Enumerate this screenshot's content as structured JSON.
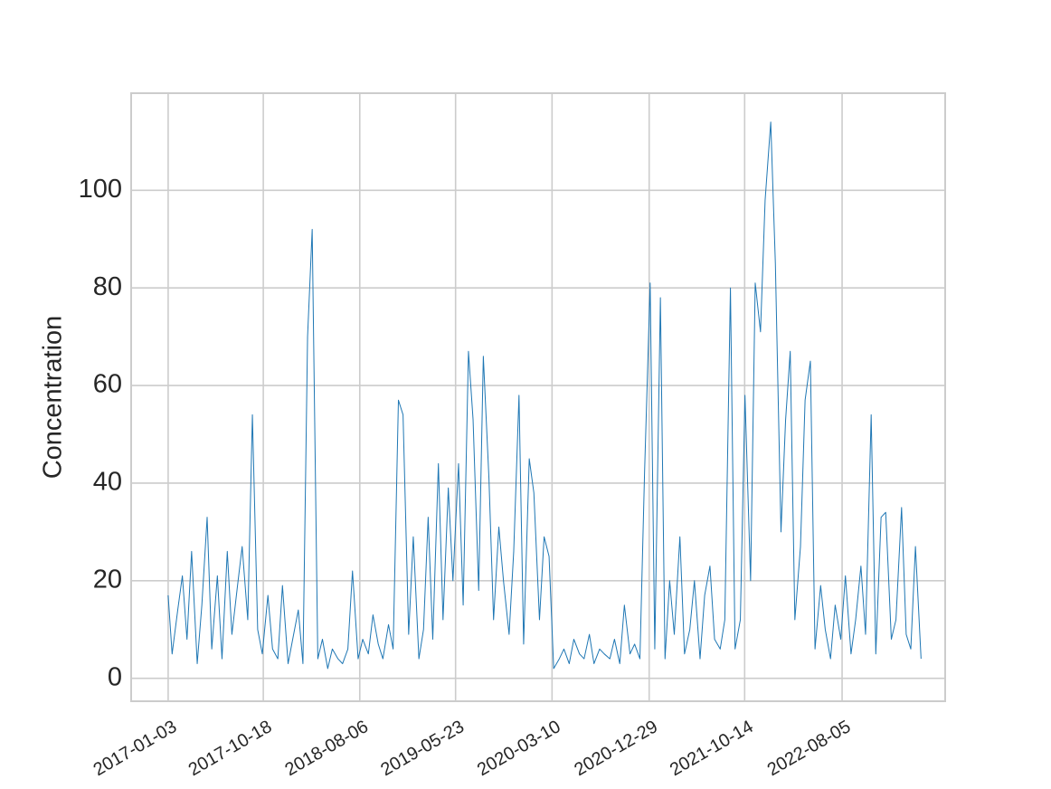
{
  "chart_data": {
    "type": "line",
    "y_label": "Concentration",
    "color": "#1f77b4",
    "grid": true,
    "x": [
      "2017-01-03",
      "2017-01-15",
      "2017-02-01",
      "2017-02-15",
      "2017-03-01",
      "2017-03-15",
      "2017-04-01",
      "2017-04-15",
      "2017-05-01",
      "2017-05-15",
      "2017-06-01",
      "2017-06-15",
      "2017-07-01",
      "2017-07-15",
      "2017-08-01",
      "2017-08-15",
      "2017-09-01",
      "2017-09-15",
      "2017-10-01",
      "2017-10-15",
      "2017-11-01",
      "2017-11-15",
      "2017-12-01",
      "2017-12-15",
      "2018-01-01",
      "2018-01-15",
      "2018-02-01",
      "2018-02-15",
      "2018-03-01",
      "2018-03-15",
      "2018-04-01",
      "2018-04-15",
      "2018-05-01",
      "2018-05-15",
      "2018-06-01",
      "2018-06-15",
      "2018-07-01",
      "2018-07-15",
      "2018-08-01",
      "2018-08-15",
      "2018-09-01",
      "2018-09-15",
      "2018-10-01",
      "2018-10-15",
      "2018-11-01",
      "2018-11-15",
      "2018-12-01",
      "2018-12-15",
      "2019-01-01",
      "2019-01-15",
      "2019-02-01",
      "2019-02-15",
      "2019-03-01",
      "2019-03-15",
      "2019-04-01",
      "2019-04-15",
      "2019-05-01",
      "2019-05-15",
      "2019-06-01",
      "2019-06-15",
      "2019-07-01",
      "2019-07-15",
      "2019-08-01",
      "2019-08-15",
      "2019-09-01",
      "2019-09-15",
      "2019-10-01",
      "2019-10-15",
      "2019-11-01",
      "2019-11-15",
      "2019-12-01",
      "2019-12-15",
      "2020-01-01",
      "2020-01-15",
      "2020-02-01",
      "2020-02-15",
      "2020-03-01",
      "2020-03-15",
      "2020-04-01",
      "2020-04-15",
      "2020-05-01",
      "2020-05-15",
      "2020-06-01",
      "2020-06-15",
      "2020-07-01",
      "2020-07-15",
      "2020-08-01",
      "2020-08-15",
      "2020-09-01",
      "2020-09-15",
      "2020-10-01",
      "2020-10-15",
      "2020-11-01",
      "2020-11-15",
      "2020-12-01",
      "2020-12-15",
      "2021-01-01",
      "2021-01-15",
      "2021-02-01",
      "2021-02-15",
      "2021-03-01",
      "2021-03-15",
      "2021-04-01",
      "2021-04-15",
      "2021-05-01",
      "2021-05-15",
      "2021-06-01",
      "2021-06-15",
      "2021-07-01",
      "2021-07-15",
      "2021-08-01",
      "2021-08-15",
      "2021-09-01",
      "2021-09-15",
      "2021-10-01",
      "2021-10-15",
      "2021-11-01",
      "2021-11-15",
      "2021-12-01",
      "2021-12-15",
      "2022-01-01",
      "2022-01-15",
      "2022-02-01",
      "2022-02-15",
      "2022-03-01",
      "2022-03-15",
      "2022-04-01",
      "2022-04-15",
      "2022-05-01",
      "2022-05-15",
      "2022-06-01",
      "2022-06-15",
      "2022-07-01",
      "2022-07-15",
      "2022-08-01",
      "2022-08-15",
      "2022-09-01",
      "2022-09-15",
      "2022-10-01",
      "2022-10-15",
      "2022-11-01",
      "2022-11-15",
      "2022-12-01",
      "2022-12-15",
      "2023-01-01",
      "2023-01-15",
      "2023-02-01",
      "2023-02-15",
      "2023-03-01",
      "2023-03-15",
      "2023-04-01"
    ],
    "values": [
      17,
      5,
      14,
      21,
      8,
      26,
      3,
      15,
      33,
      6,
      21,
      4,
      26,
      9,
      19,
      27,
      12,
      54,
      10,
      5,
      17,
      6,
      4,
      19,
      3,
      8,
      14,
      3,
      70,
      92,
      4,
      8,
      2,
      6,
      4,
      3,
      6,
      22,
      4,
      8,
      5,
      13,
      7,
      4,
      11,
      6,
      57,
      54,
      9,
      29,
      4,
      10,
      33,
      8,
      44,
      12,
      39,
      20,
      44,
      15,
      67,
      53,
      18,
      66,
      41,
      12,
      31,
      20,
      9,
      26,
      58,
      7,
      45,
      38,
      12,
      29,
      25,
      2,
      4,
      6,
      3,
      8,
      5,
      4,
      9,
      3,
      6,
      5,
      4,
      8,
      3,
      15,
      5,
      7,
      4,
      42,
      81,
      6,
      78,
      4,
      20,
      9,
      29,
      5,
      10,
      20,
      4,
      17,
      23,
      8,
      6,
      12,
      80,
      6,
      12,
      58,
      20,
      81,
      71,
      98,
      114,
      85,
      30,
      53,
      67,
      12,
      27,
      57,
      65,
      6,
      19,
      10,
      4,
      15,
      8,
      21,
      5,
      12,
      23,
      9,
      54,
      5,
      33,
      34,
      8,
      12,
      35,
      9,
      6,
      27,
      4
    ],
    "xlim": [
      "2016-09-13",
      "2023-06-13"
    ],
    "xticks": [
      "2017-01-03",
      "2017-10-18",
      "2018-08-06",
      "2019-05-23",
      "2020-03-10",
      "2020-12-29",
      "2021-10-14",
      "2022-08-05"
    ],
    "ylim": [
      -4.7,
      119.9
    ],
    "yticks": [
      0,
      20,
      40,
      60,
      80,
      100
    ]
  }
}
